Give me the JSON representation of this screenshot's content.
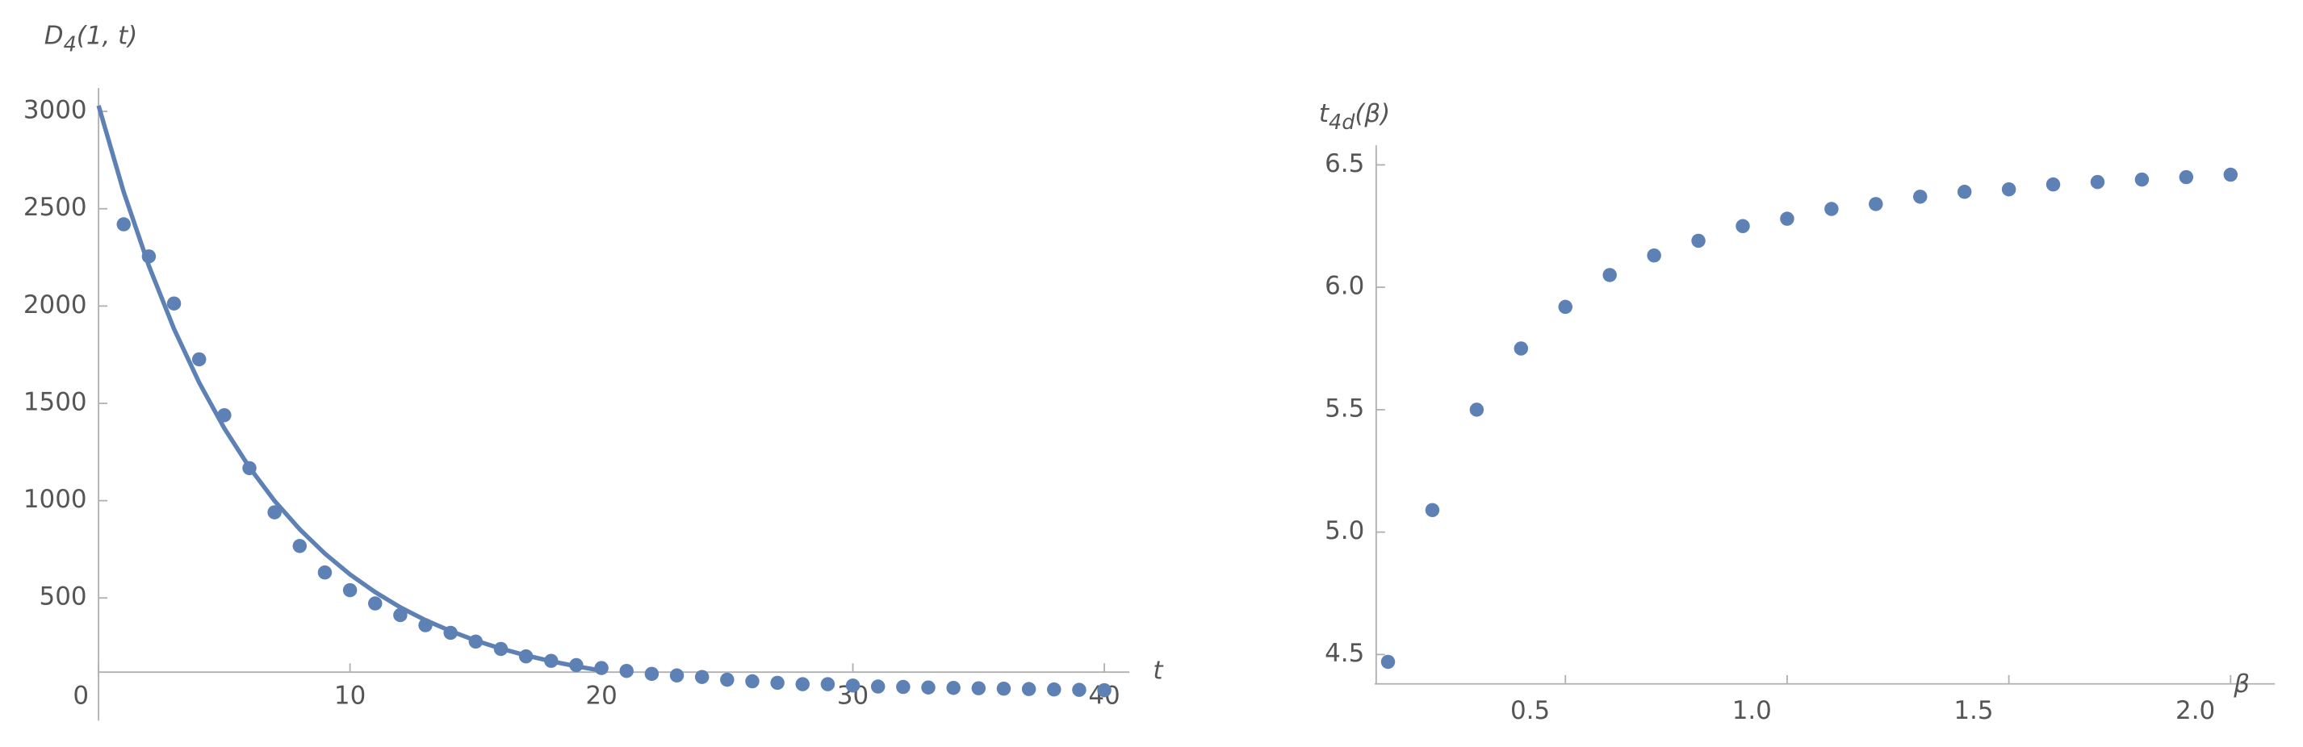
{
  "chart_data": [
    {
      "type": "scatter",
      "y_label": [
        "D",
        "4",
        "(1, t)"
      ],
      "x_label": "t",
      "xlim": [
        0,
        41
      ],
      "ylim": [
        -130,
        3120
      ],
      "xticks": [
        0,
        10,
        20,
        30,
        40
      ],
      "yticks": [
        500,
        1000,
        1500,
        2000,
        2500,
        3000
      ],
      "series": [
        {
          "type": "scatter",
          "color": "#5e81b5",
          "x": [
            1,
            2,
            3,
            4,
            5,
            6,
            7,
            8,
            9,
            10,
            11,
            12,
            13,
            14,
            15,
            16,
            17,
            18,
            19,
            20,
            21,
            22,
            23,
            24,
            25,
            26,
            27,
            28,
            29,
            30,
            31,
            32,
            33,
            34,
            35,
            36,
            37,
            38,
            39,
            40
          ],
          "values": [
            2420,
            2255,
            2013,
            1726,
            1439,
            1167,
            940,
            767,
            631,
            540,
            472,
            412,
            360,
            321,
            276,
            238,
            200,
            177,
            155,
            140,
            125,
            110,
            102,
            94,
            80,
            72,
            64,
            57,
            57,
            50,
            45,
            43,
            40,
            38,
            36,
            34,
            32,
            30,
            28,
            26
          ]
        },
        {
          "type": "line",
          "color": "#5e81b5",
          "x": [
            0,
            1,
            2,
            3,
            4,
            5,
            6,
            7,
            8,
            9,
            10,
            11,
            12,
            13,
            14,
            15,
            16,
            17,
            18,
            19,
            20
          ],
          "values": [
            3030,
            2586,
            2207,
            1883,
            1607,
            1372,
            1171,
            999,
            853,
            728,
            621,
            530,
            452,
            386,
            330,
            281,
            240,
            205,
            175,
            149,
            127
          ]
        }
      ]
    },
    {
      "type": "scatter",
      "y_label": [
        "t",
        "4d",
        "(β)"
      ],
      "x_label": "β",
      "xlim": [
        0.07,
        2.1
      ],
      "ylim": [
        4.38,
        6.58
      ],
      "xticks": [
        0.5,
        {
          "value": 1,
          "label": "1.0"
        },
        1.5,
        {
          "value": 2,
          "label": "2.0"
        }
      ],
      "yticks": [
        4.5,
        {
          "value": 5,
          "label": "5.0"
        },
        5.5,
        {
          "value": 6,
          "label": "6.0"
        },
        6.5
      ],
      "series": [
        {
          "type": "scatter",
          "color": "#5e81b5",
          "x": [
            0.1,
            0.2,
            0.3,
            0.4,
            0.5,
            0.6,
            0.7,
            0.8,
            0.9,
            1.0,
            1.1,
            1.2,
            1.3,
            1.4,
            1.5,
            1.6,
            1.7,
            1.8,
            1.9,
            2.0
          ],
          "values": [
            4.47,
            5.09,
            5.5,
            5.75,
            5.92,
            6.05,
            6.13,
            6.19,
            6.25,
            6.28,
            6.32,
            6.34,
            6.37,
            6.39,
            6.4,
            6.42,
            6.43,
            6.44,
            6.45,
            6.46
          ]
        }
      ]
    }
  ]
}
